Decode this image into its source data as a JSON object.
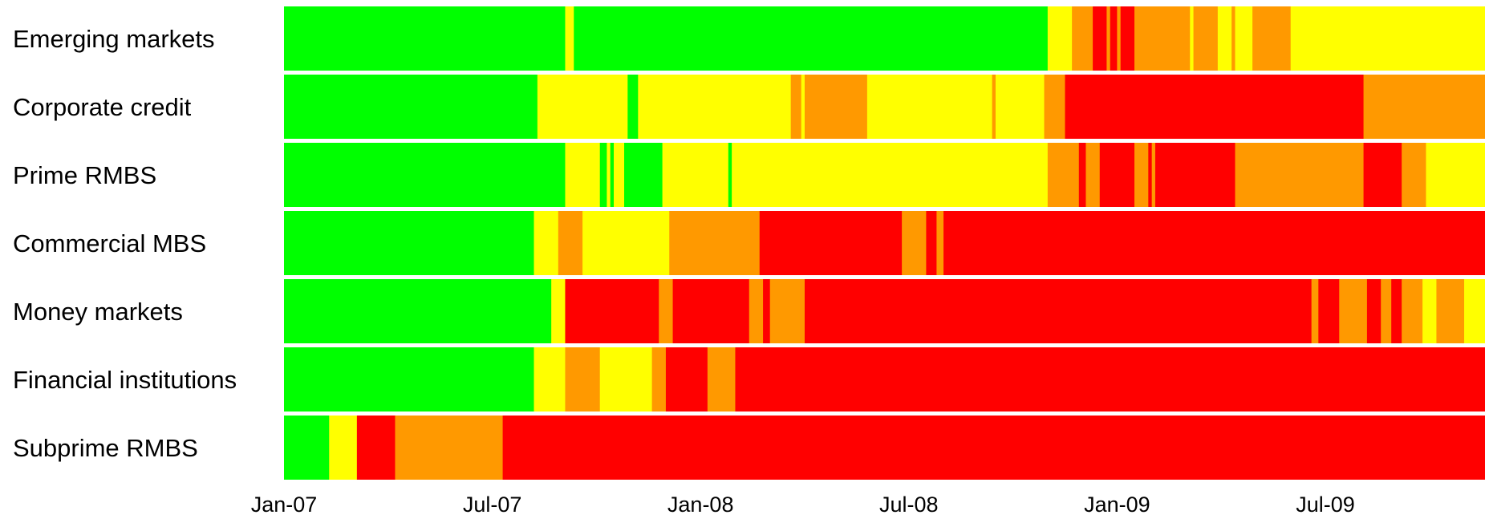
{
  "chart_data": {
    "type": "heatmap",
    "title": "",
    "xlabel": "",
    "ylabel": "",
    "x_ticks": [
      "Jan-07",
      "Jul-07",
      "Jan-08",
      "Jul-08",
      "Jan-09",
      "Jul-09"
    ],
    "x_range_months": [
      0,
      34.6
    ],
    "legend": "none",
    "colors": {
      "green": "#00ff00",
      "yellow": "#ffff00",
      "orange": "#ff9900",
      "red": "#ff0000"
    },
    "series": [
      {
        "name": "Emerging markets",
        "segments": [
          {
            "from": 0,
            "to": 8.1,
            "level": "green"
          },
          {
            "from": 8.1,
            "to": 8.35,
            "level": "yellow"
          },
          {
            "from": 8.35,
            "to": 22.0,
            "level": "green"
          },
          {
            "from": 22.0,
            "to": 22.7,
            "level": "yellow"
          },
          {
            "from": 22.7,
            "to": 23.3,
            "level": "orange"
          },
          {
            "from": 23.3,
            "to": 23.7,
            "level": "red"
          },
          {
            "from": 23.7,
            "to": 23.8,
            "level": "orange"
          },
          {
            "from": 23.8,
            "to": 24.0,
            "level": "red"
          },
          {
            "from": 24.0,
            "to": 24.1,
            "level": "orange"
          },
          {
            "from": 24.1,
            "to": 24.5,
            "level": "red"
          },
          {
            "from": 24.5,
            "to": 26.1,
            "level": "orange"
          },
          {
            "from": 26.1,
            "to": 26.2,
            "level": "yellow"
          },
          {
            "from": 26.2,
            "to": 26.9,
            "level": "orange"
          },
          {
            "from": 26.9,
            "to": 27.3,
            "level": "yellow"
          },
          {
            "from": 27.3,
            "to": 27.4,
            "level": "orange"
          },
          {
            "from": 27.4,
            "to": 27.9,
            "level": "yellow"
          },
          {
            "from": 27.9,
            "to": 29.0,
            "level": "orange"
          },
          {
            "from": 29.0,
            "to": 34.6,
            "level": "yellow"
          }
        ]
      },
      {
        "name": "Corporate credit",
        "segments": [
          {
            "from": 0,
            "to": 7.3,
            "level": "green"
          },
          {
            "from": 7.3,
            "to": 9.9,
            "level": "yellow"
          },
          {
            "from": 9.9,
            "to": 10.2,
            "level": "green"
          },
          {
            "from": 10.2,
            "to": 14.6,
            "level": "yellow"
          },
          {
            "from": 14.6,
            "to": 14.9,
            "level": "orange"
          },
          {
            "from": 14.9,
            "to": 15.0,
            "level": "yellow"
          },
          {
            "from": 15.0,
            "to": 16.8,
            "level": "orange"
          },
          {
            "from": 16.8,
            "to": 20.4,
            "level": "yellow"
          },
          {
            "from": 20.4,
            "to": 20.5,
            "level": "orange"
          },
          {
            "from": 20.5,
            "to": 21.9,
            "level": "yellow"
          },
          {
            "from": 21.9,
            "to": 22.5,
            "level": "orange"
          },
          {
            "from": 22.5,
            "to": 31.1,
            "level": "red"
          },
          {
            "from": 31.1,
            "to": 34.6,
            "level": "orange"
          }
        ]
      },
      {
        "name": "Prime RMBS",
        "segments": [
          {
            "from": 0,
            "to": 8.1,
            "level": "green"
          },
          {
            "from": 8.1,
            "to": 9.1,
            "level": "yellow"
          },
          {
            "from": 9.1,
            "to": 9.3,
            "level": "green"
          },
          {
            "from": 9.3,
            "to": 9.4,
            "level": "yellow"
          },
          {
            "from": 9.4,
            "to": 9.5,
            "level": "green"
          },
          {
            "from": 9.5,
            "to": 9.8,
            "level": "yellow"
          },
          {
            "from": 9.8,
            "to": 10.9,
            "level": "green"
          },
          {
            "from": 10.9,
            "to": 12.8,
            "level": "yellow"
          },
          {
            "from": 12.8,
            "to": 12.9,
            "level": "green"
          },
          {
            "from": 12.9,
            "to": 22.0,
            "level": "yellow"
          },
          {
            "from": 22.0,
            "to": 22.9,
            "level": "orange"
          },
          {
            "from": 22.9,
            "to": 23.1,
            "level": "red"
          },
          {
            "from": 23.1,
            "to": 23.5,
            "level": "orange"
          },
          {
            "from": 23.5,
            "to": 24.5,
            "level": "red"
          },
          {
            "from": 24.5,
            "to": 24.9,
            "level": "orange"
          },
          {
            "from": 24.9,
            "to": 25.0,
            "level": "red"
          },
          {
            "from": 25.0,
            "to": 25.1,
            "level": "orange"
          },
          {
            "from": 25.1,
            "to": 27.4,
            "level": "red"
          },
          {
            "from": 27.4,
            "to": 31.1,
            "level": "orange"
          },
          {
            "from": 31.1,
            "to": 32.2,
            "level": "red"
          },
          {
            "from": 32.2,
            "to": 32.9,
            "level": "orange"
          },
          {
            "from": 32.9,
            "to": 34.6,
            "level": "yellow"
          }
        ]
      },
      {
        "name": "Commercial MBS",
        "segments": [
          {
            "from": 0,
            "to": 7.2,
            "level": "green"
          },
          {
            "from": 7.2,
            "to": 7.9,
            "level": "yellow"
          },
          {
            "from": 7.9,
            "to": 8.6,
            "level": "orange"
          },
          {
            "from": 8.6,
            "to": 11.1,
            "level": "yellow"
          },
          {
            "from": 11.1,
            "to": 13.7,
            "level": "orange"
          },
          {
            "from": 13.7,
            "to": 17.8,
            "level": "red"
          },
          {
            "from": 17.8,
            "to": 18.5,
            "level": "orange"
          },
          {
            "from": 18.5,
            "to": 18.8,
            "level": "red"
          },
          {
            "from": 18.8,
            "to": 19.0,
            "level": "orange"
          },
          {
            "from": 19.0,
            "to": 34.6,
            "level": "red"
          }
        ]
      },
      {
        "name": "Money markets",
        "segments": [
          {
            "from": 0,
            "to": 7.7,
            "level": "green"
          },
          {
            "from": 7.7,
            "to": 8.1,
            "level": "yellow"
          },
          {
            "from": 8.1,
            "to": 10.8,
            "level": "red"
          },
          {
            "from": 10.8,
            "to": 11.2,
            "level": "orange"
          },
          {
            "from": 11.2,
            "to": 13.4,
            "level": "red"
          },
          {
            "from": 13.4,
            "to": 13.8,
            "level": "orange"
          },
          {
            "from": 13.8,
            "to": 14.0,
            "level": "red"
          },
          {
            "from": 14.0,
            "to": 15.0,
            "level": "orange"
          },
          {
            "from": 15.0,
            "to": 29.6,
            "level": "red"
          },
          {
            "from": 29.6,
            "to": 29.8,
            "level": "orange"
          },
          {
            "from": 29.8,
            "to": 30.4,
            "level": "red"
          },
          {
            "from": 30.4,
            "to": 31.2,
            "level": "orange"
          },
          {
            "from": 31.2,
            "to": 31.6,
            "level": "red"
          },
          {
            "from": 31.6,
            "to": 31.9,
            "level": "orange"
          },
          {
            "from": 31.9,
            "to": 32.2,
            "level": "red"
          },
          {
            "from": 32.2,
            "to": 32.8,
            "level": "orange"
          },
          {
            "from": 32.8,
            "to": 33.2,
            "level": "yellow"
          },
          {
            "from": 33.2,
            "to": 34.0,
            "level": "orange"
          },
          {
            "from": 34.0,
            "to": 34.6,
            "level": "yellow"
          }
        ]
      },
      {
        "name": "Financial institutions",
        "segments": [
          {
            "from": 0,
            "to": 7.2,
            "level": "green"
          },
          {
            "from": 7.2,
            "to": 8.1,
            "level": "yellow"
          },
          {
            "from": 8.1,
            "to": 9.1,
            "level": "orange"
          },
          {
            "from": 9.1,
            "to": 10.6,
            "level": "yellow"
          },
          {
            "from": 10.6,
            "to": 11.0,
            "level": "orange"
          },
          {
            "from": 11.0,
            "to": 12.2,
            "level": "red"
          },
          {
            "from": 12.2,
            "to": 13.0,
            "level": "orange"
          },
          {
            "from": 13.0,
            "to": 34.6,
            "level": "red"
          }
        ]
      },
      {
        "name": "Subprime RMBS",
        "segments": [
          {
            "from": 0,
            "to": 1.3,
            "level": "green"
          },
          {
            "from": 1.3,
            "to": 2.1,
            "level": "yellow"
          },
          {
            "from": 2.1,
            "to": 3.2,
            "level": "red"
          },
          {
            "from": 3.2,
            "to": 6.3,
            "level": "orange"
          },
          {
            "from": 6.3,
            "to": 34.6,
            "level": "red"
          }
        ]
      }
    ]
  }
}
